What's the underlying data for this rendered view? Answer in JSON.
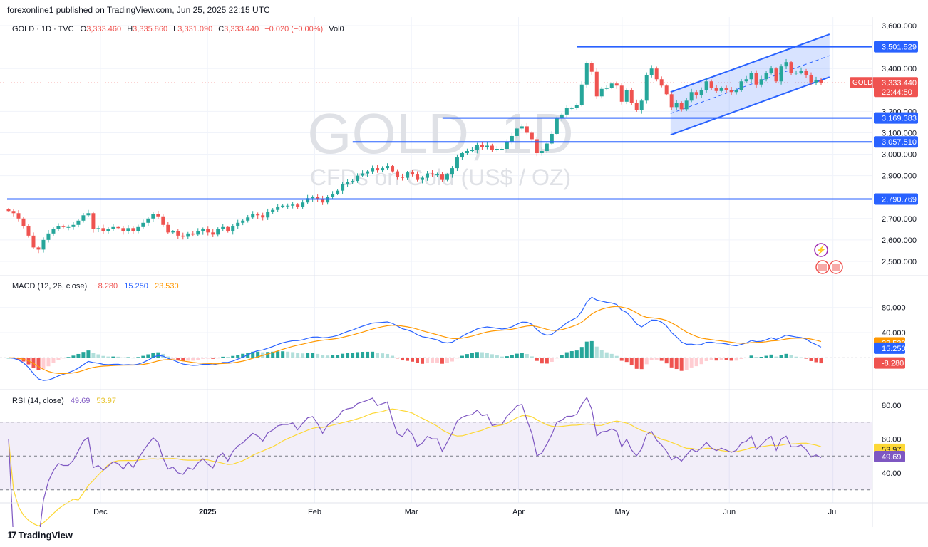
{
  "header": {
    "publisher": "forexonline1 published on TradingView.com, Jun 25, 2025 22:15 UTC"
  },
  "footer": {
    "brand": "TradingView"
  },
  "watermark": {
    "title": "GOLD, 1D",
    "subtitle": "CFDs on Gold (US$ / OZ)"
  },
  "legend": {
    "symbol": "GOLD · 1D · TVC",
    "o_label": "O",
    "o": "3,333.460",
    "h_label": "H",
    "h": "3,335.860",
    "l_label": "L",
    "l": "3,331.090",
    "c_label": "C",
    "c": "3,333.440",
    "change": "−0.020 (−0.00%)",
    "vol": "Vol0"
  },
  "colors": {
    "up": "#26a69a",
    "down": "#ef5350",
    "level": "#2962ff",
    "macd": "#2962ff",
    "signal": "#ff9800",
    "rsi": "#7e57c2",
    "rsi_ma": "#fdd835"
  },
  "price_badge": {
    "symbol": "GOLD",
    "value": "3,333.440",
    "countdown": "22:44:50"
  },
  "chart_data": [
    {
      "type": "candlestick",
      "name": "GOLD · 1D · TVC",
      "ylim": [
        2450,
        3620
      ],
      "y_ticks": [
        "3,600.000",
        "3,400.000",
        "3,200.000",
        "3,100.000",
        "3,000.000",
        "2,900.000",
        "2,700.000",
        "2,600.000",
        "2,500.000"
      ],
      "y_tick_values": [
        3600,
        3400,
        3200,
        3100,
        3000,
        2900,
        2700,
        2600,
        2500
      ],
      "x_ticks": [
        "Dec",
        "2025",
        "Feb",
        "Mar",
        "Apr",
        "May",
        "Jun",
        "Jul"
      ],
      "x_tick_dates": [
        "2024-12-01",
        "2025-01-01",
        "2025-02-01",
        "2025-03-01",
        "2025-04-01",
        "2025-05-01",
        "2025-06-01",
        "2025-07-01"
      ],
      "date_range": [
        "2024-11-04",
        "2025-07-12"
      ],
      "levels": [
        {
          "label": "3,501.529",
          "value": 3501.529,
          "from": "2025-04-18"
        },
        {
          "label": "3,169.383",
          "value": 3169.383,
          "from": "2025-03-10"
        },
        {
          "label": "3,057.510",
          "value": 3057.51,
          "from": "2025-02-12"
        },
        {
          "label": "2,790.769",
          "value": 2790.769,
          "from": "2024-11-04"
        }
      ],
      "channel": {
        "from": "2025-05-15",
        "to": "2025-06-30",
        "upper": [
          3290,
          3560
        ],
        "lower": [
          3090,
          3360
        ],
        "mid": [
          3190,
          3460
        ]
      },
      "close": [
        2735,
        2725,
        2700,
        2665,
        2620,
        2565,
        2555,
        2600,
        2630,
        2650,
        2665,
        2660,
        2660,
        2670,
        2690,
        2715,
        2725,
        2650,
        2655,
        2640,
        2650,
        2660,
        2655,
        2640,
        2655,
        2640,
        2660,
        2680,
        2700,
        2720,
        2710,
        2670,
        2635,
        2640,
        2620,
        2615,
        2630,
        2625,
        2640,
        2650,
        2635,
        2625,
        2650,
        2660,
        2640,
        2665,
        2680,
        2690,
        2705,
        2720,
        2715,
        2705,
        2730,
        2740,
        2755,
        2760,
        2760,
        2765,
        2755,
        2775,
        2795,
        2800,
        2790,
        2775,
        2800,
        2815,
        2830,
        2860,
        2870,
        2875,
        2900,
        2910,
        2920,
        2935,
        2925,
        2935,
        2945,
        2920,
        2895,
        2890,
        2915,
        2905,
        2880,
        2890,
        2910,
        2905,
        2905,
        2880,
        2905,
        2935,
        2985,
        3005,
        3015,
        3020,
        3045,
        3035,
        3040,
        3020,
        3025,
        3025,
        3060,
        3085,
        3120,
        3130,
        3100,
        3070,
        3005,
        3015,
        3050,
        3095,
        3170,
        3185,
        3215,
        3215,
        3230,
        3325,
        3425,
        3385,
        3270,
        3305,
        3310,
        3330,
        3320,
        3245,
        3300,
        3240,
        3205,
        3250,
        3370,
        3400,
        3350,
        3320,
        3280,
        3220,
        3240,
        3210,
        3250,
        3290,
        3275,
        3300,
        3340,
        3310,
        3295,
        3310,
        3300,
        3290,
        3300,
        3340,
        3350,
        3380,
        3325,
        3350,
        3380,
        3400,
        3340,
        3410,
        3430,
        3380,
        3380,
        3390,
        3370,
        3335,
        3345,
        3333
      ]
    },
    {
      "type": "line",
      "name": "MACD (12, 26, close)",
      "legend_values": [
        "−8.280",
        "15.250",
        "23.530"
      ],
      "ylim": [
        -45,
        125
      ],
      "y_ticks": [
        "80.000",
        "40.000"
      ],
      "y_tick_values": [
        80,
        40
      ],
      "badges": [
        {
          "label": "23.530",
          "value": 23.53,
          "color": "#ff9800"
        },
        {
          "label": "15.250",
          "value": 15.25,
          "color": "#2962ff"
        },
        {
          "label": "-8.280",
          "value": -8.28,
          "color": "#ef5350"
        }
      ]
    },
    {
      "type": "line",
      "name": "RSI (14, close)",
      "legend_values": [
        "49.69",
        "53.97"
      ],
      "ylim": [
        24,
        88
      ],
      "y_ticks": [
        "80.00",
        "60.00",
        "40.00"
      ],
      "y_tick_values": [
        80,
        60,
        40
      ],
      "bands": [
        30,
        50,
        70
      ],
      "badges": [
        {
          "label": "53.97",
          "value": 53.97,
          "color": "#fdd835"
        },
        {
          "label": "49.69",
          "value": 49.69,
          "color": "#7e57c2"
        }
      ]
    }
  ]
}
